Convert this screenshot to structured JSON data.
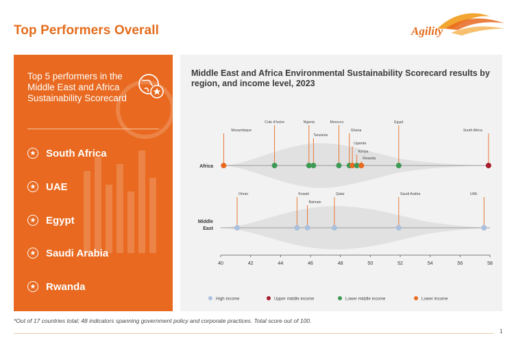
{
  "page": {
    "title": "Top Performers Overall",
    "logo_text": "Agility",
    "footnote": "*Out of 17 countries total; 48 indicators spanning government policy and corporate practices. Total score out of 100.",
    "page_number": "1"
  },
  "panel": {
    "heading": "Top 5 performers in the Middle East and Africa Sustainability Scorecard",
    "icon": "globe-star-icon",
    "items": [
      "South Africa",
      "UAE",
      "Egypt",
      "Saudi Arabia",
      "Rwanda"
    ]
  },
  "colors": {
    "accent": "#e8691f",
    "high_income": "#a9c1dd",
    "upper_middle_income": "#a61c2d",
    "lower_middle_income": "#3d9a55",
    "lower_income": "#e8691f"
  },
  "chart_data": {
    "type": "scatter",
    "title": "Middle East and Africa Environmental Sustainability Scorecard results by region, and income level, 2023",
    "x_ticks": [
      "40",
      "42",
      "44",
      "46",
      "48",
      "50",
      "52",
      "54",
      "56",
      "58"
    ],
    "xlim": [
      40,
      58
    ],
    "legend": [
      "High income",
      "Upper middle income",
      "Lower middle income",
      "Lower income"
    ],
    "legend_position": "bottom",
    "rows": [
      {
        "region": "Africa",
        "points": [
          {
            "name": "Mozambique",
            "x": 40.2,
            "income": "Lower income"
          },
          {
            "name": "Cote d'Ivoire",
            "x": 43.6,
            "income": "Lower middle income"
          },
          {
            "name": "Nigeria",
            "x": 45.9,
            "income": "Lower middle income"
          },
          {
            "name": "Tanzania",
            "x": 46.2,
            "income": "Lower middle income"
          },
          {
            "name": "Morocco",
            "x": 47.9,
            "income": "Lower middle income"
          },
          {
            "name": "Ghana",
            "x": 48.6,
            "income": "Lower middle income"
          },
          {
            "name": "Uganda",
            "x": 48.8,
            "income": "Lower income"
          },
          {
            "name": "Kenya",
            "x": 49.1,
            "income": "Lower middle income"
          },
          {
            "name": "Rwanda",
            "x": 49.4,
            "income": "Lower income"
          },
          {
            "name": "Egypt",
            "x": 51.9,
            "income": "Lower middle income"
          },
          {
            "name": "South Africa",
            "x": 57.9,
            "income": "Upper middle income"
          }
        ]
      },
      {
        "region": "Middle East",
        "points": [
          {
            "name": "Oman",
            "x": 41.1,
            "income": "High income"
          },
          {
            "name": "Kuwait",
            "x": 45.1,
            "income": "High income"
          },
          {
            "name": "Bahrain",
            "x": 45.8,
            "income": "High income"
          },
          {
            "name": "Qatar",
            "x": 47.6,
            "income": "High income"
          },
          {
            "name": "Saudi Arabia",
            "x": 51.9,
            "income": "High income"
          },
          {
            "name": "UAE",
            "x": 57.6,
            "income": "High income"
          }
        ]
      }
    ]
  }
}
